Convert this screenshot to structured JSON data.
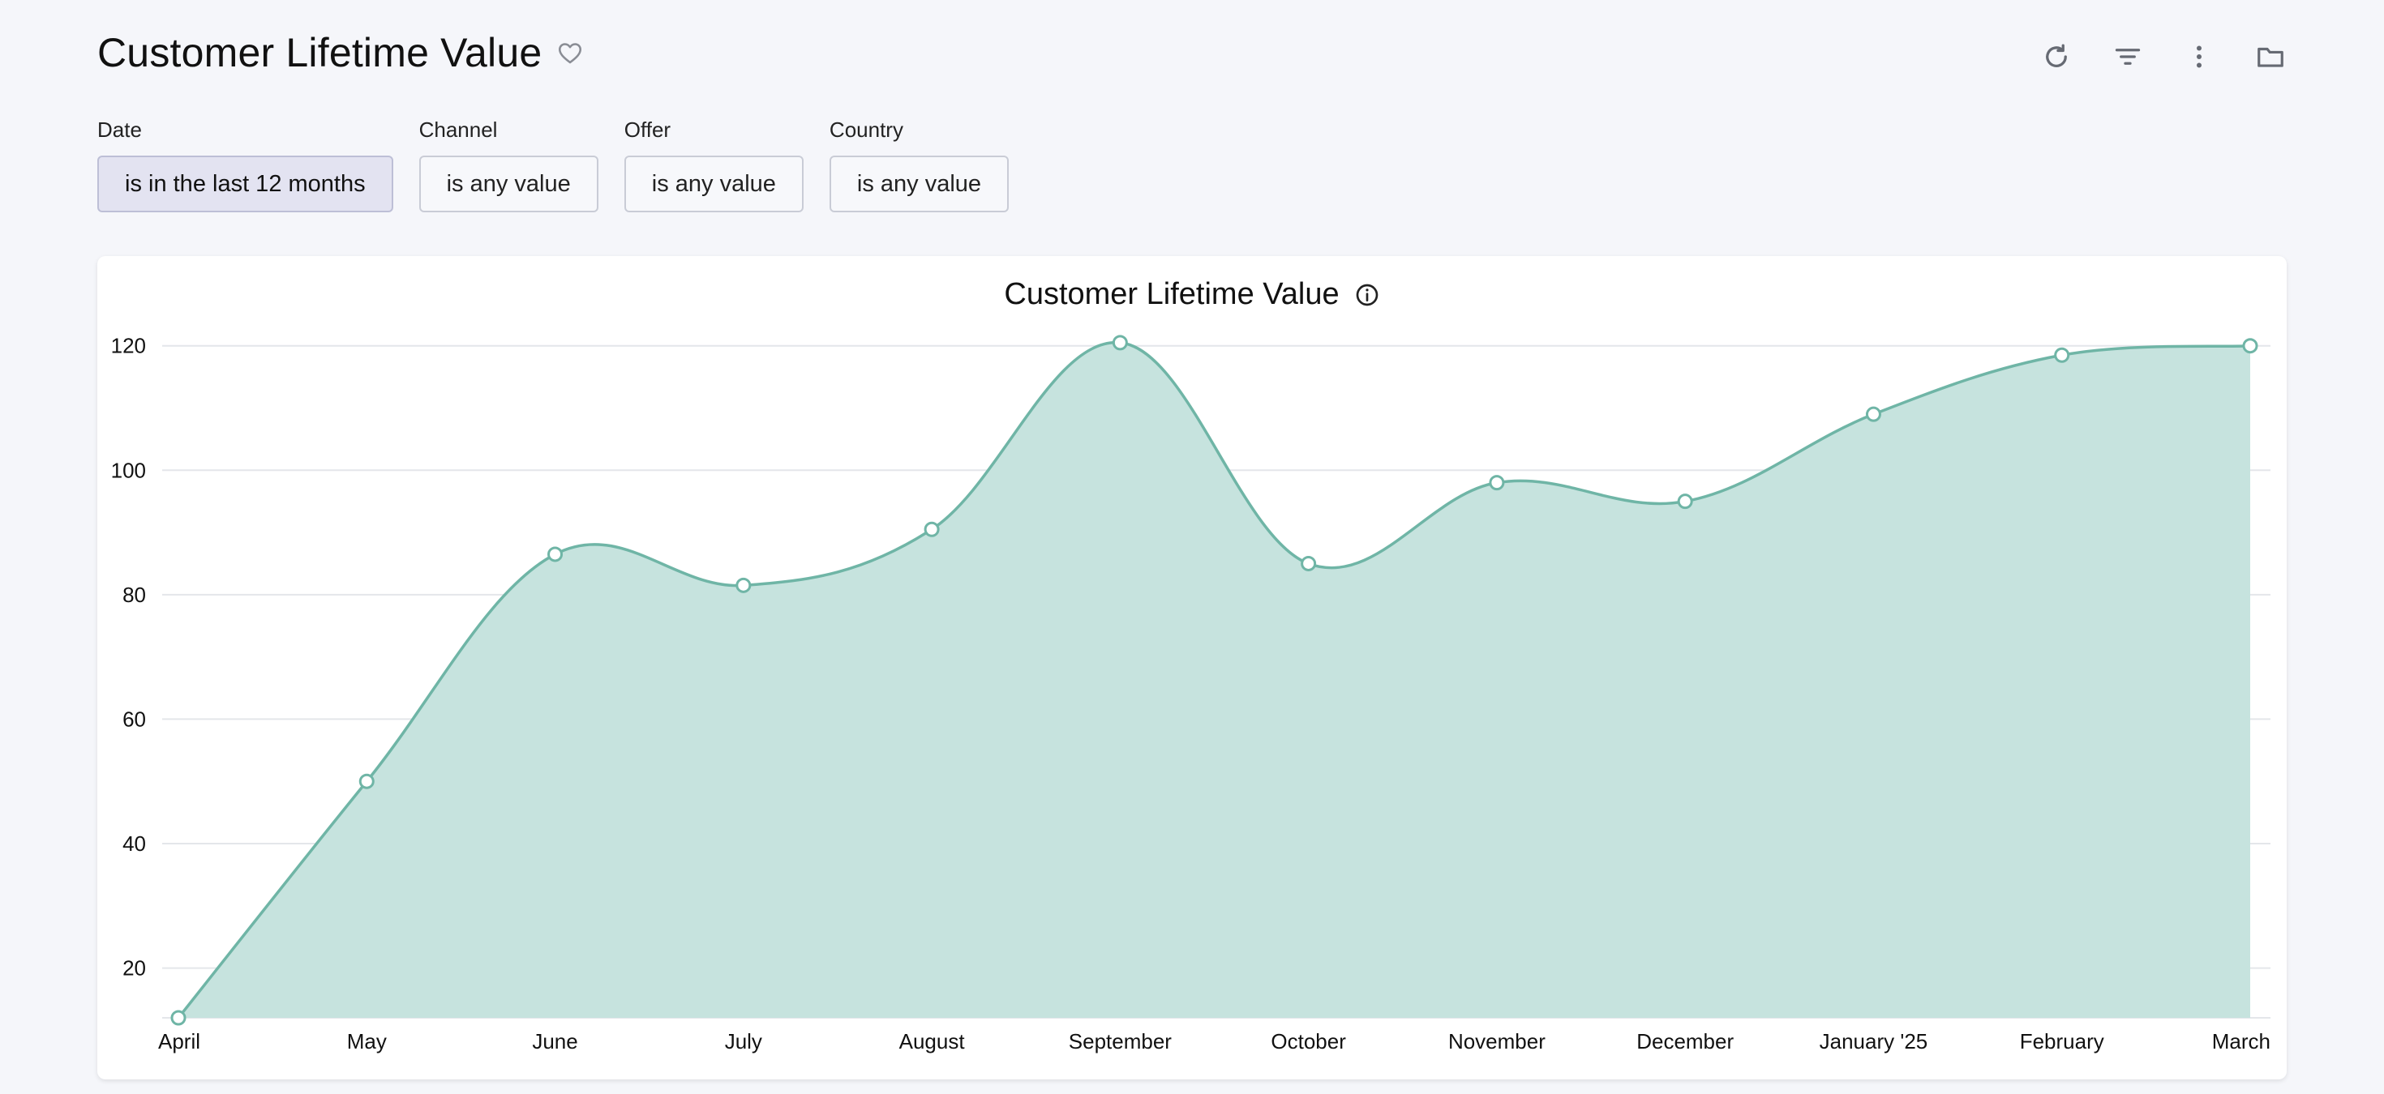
{
  "header": {
    "title": "Customer Lifetime Value",
    "favorite_icon": "heart-icon"
  },
  "toolbar": {
    "icons": [
      "refresh-icon",
      "filter-icon",
      "more-vertical-icon",
      "folder-icon"
    ]
  },
  "filters": [
    {
      "label": "Date",
      "value": "is in the last 12 months",
      "active": true
    },
    {
      "label": "Channel",
      "value": "is any value",
      "active": false
    },
    {
      "label": "Offer",
      "value": "is any value",
      "active": false
    },
    {
      "label": "Country",
      "value": "is any value",
      "active": false
    }
  ],
  "card": {
    "title": "Customer Lifetime Value",
    "info_icon": "info-icon"
  },
  "colors": {
    "line": "#6fb5a6",
    "area": "#c6e3de",
    "grid": "#e4e6ea",
    "background": "#f5f6fa"
  },
  "chart_data": {
    "type": "area",
    "title": "Customer Lifetime Value",
    "xlabel": "",
    "ylabel": "",
    "x": [
      "April",
      "May",
      "June",
      "July",
      "August",
      "September",
      "October",
      "November",
      "December",
      "January '25",
      "February",
      "March"
    ],
    "series": [
      {
        "values": [
          12,
          50,
          86.5,
          81.5,
          90.5,
          120.5,
          85,
          98,
          95,
          109,
          118.5,
          120
        ]
      }
    ],
    "y_ticks": [
      20,
      40,
      60,
      80,
      100,
      120
    ],
    "ylim": [
      12,
      124
    ],
    "grid": true,
    "legend": "none",
    "smooth": true,
    "markers": true
  }
}
